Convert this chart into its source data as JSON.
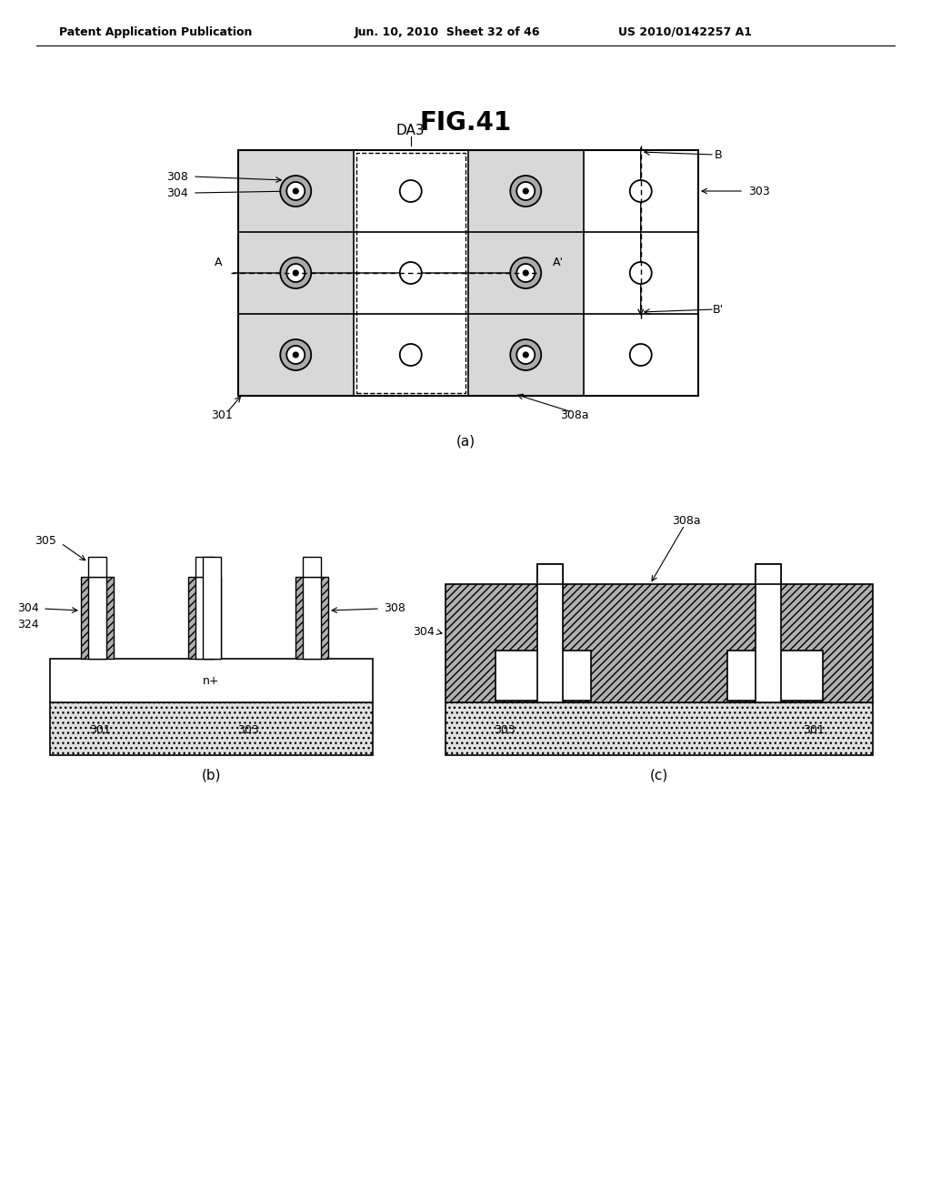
{
  "title": "FIG.41",
  "header_left": "Patent Application Publication",
  "header_center": "Jun. 10, 2010  Sheet 32 of 46",
  "header_right": "US 2010/0142257 A1",
  "bg_color": "#ffffff",
  "fig_w": 10.24,
  "fig_h": 13.2,
  "dpi": 100
}
